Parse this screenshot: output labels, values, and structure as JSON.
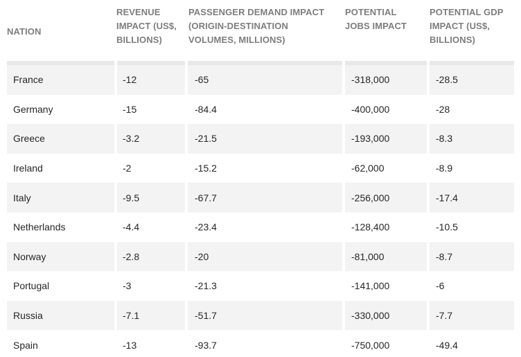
{
  "columns": [
    {
      "label": "NATION"
    },
    {
      "label": "REVENUE IMPACT (US$, BILLIONS)",
      "lines": [
        "REVENUE",
        "IMPACT (US$,",
        "BILLIONS)"
      ]
    },
    {
      "label": "PASSENGER DEMAND IMPACT (ORIGIN-DESTINATION VOLUMES, MILLIONS)",
      "lines": [
        "PASSENGER DEMAND IMPACT",
        "(ORIGIN-DESTINATION",
        "VOLUMES, MILLIONS)"
      ]
    },
    {
      "label": "POTENTIAL JOBS IMPACT",
      "lines": [
        "POTENTIAL",
        "JOBS IMPACT"
      ]
    },
    {
      "label": "POTENTIAL GDP IMPACT (US$, BILLIONS)",
      "lines": [
        "POTENTIAL GDP",
        "IMPACT (US$,",
        "BILLIONS)"
      ]
    }
  ],
  "rows": [
    {
      "nation": "France",
      "revenue": "-12",
      "passenger": "-65",
      "jobs": "-318,000",
      "gdp": "-28.5"
    },
    {
      "nation": "Germany",
      "revenue": "-15",
      "passenger": "-84.4",
      "jobs": "-400,000",
      "gdp": "-28"
    },
    {
      "nation": "Greece",
      "revenue": "-3.2",
      "passenger": "-21.5",
      "jobs": "-193,000",
      "gdp": "-8.3"
    },
    {
      "nation": "Ireland",
      "revenue": "-2",
      "passenger": "-15.2",
      "jobs": "-62,000",
      "gdp": "-8.9"
    },
    {
      "nation": "Italy",
      "revenue": "-9.5",
      "passenger": "-67.7",
      "jobs": "-256,000",
      "gdp": "-17.4"
    },
    {
      "nation": "Netherlands",
      "revenue": "-4.4",
      "passenger": "-23.4",
      "jobs": "-128,400",
      "gdp": "-10.5"
    },
    {
      "nation": "Norway",
      "revenue": "-2.8",
      "passenger": "-20",
      "jobs": "-81,000",
      "gdp": "-8.7"
    },
    {
      "nation": "Portugal",
      "revenue": "-3",
      "passenger": "-21.3",
      "jobs": "-141,000",
      "gdp": "-6"
    },
    {
      "nation": "Russia",
      "revenue": "-7.1",
      "passenger": "-51.7",
      "jobs": "-330,000",
      "gdp": "-7.7"
    },
    {
      "nation": "Spain",
      "revenue": "-13",
      "passenger": "-93.7",
      "jobs": "-750,000",
      "gdp": "-49.4"
    }
  ],
  "colors": {
    "header_text": "#7d7d7d",
    "shaded_row": "#f3f3f3",
    "band": "#e8e8e8"
  }
}
